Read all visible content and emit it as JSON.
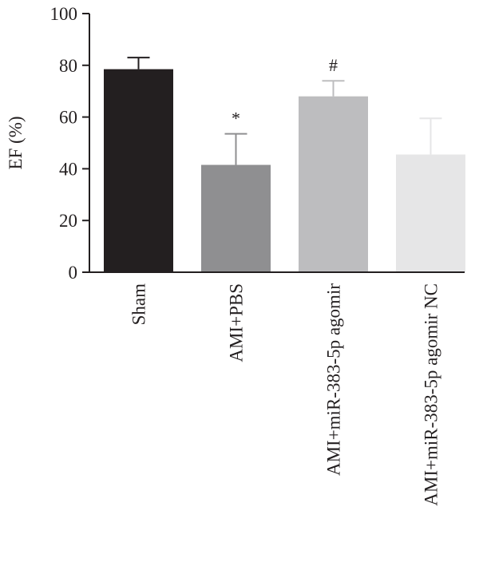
{
  "chart_data": {
    "type": "bar",
    "title": "",
    "xlabel": "",
    "ylabel": "EF (%)",
    "ylim": [
      0,
      100
    ],
    "yticks": [
      0,
      20,
      40,
      60,
      80,
      100
    ],
    "ytick_labels": [
      "0",
      "20",
      "40",
      "60",
      "80",
      "100"
    ],
    "categories": [
      "Sham",
      "AMI+PBS",
      "AMI+miR-383-5p agomir",
      "AMI+miR-383-5p agomir NC"
    ],
    "values": [
      78.5,
      41.5,
      68,
      45.5
    ],
    "error_upper": [
      83,
      53.5,
      74,
      59.5
    ],
    "annotations": [
      "",
      "*",
      "#",
      ""
    ],
    "colors": [
      "#231f20",
      "#8f8f91",
      "#bdbdbf",
      "#e6e6e7"
    ],
    "legend": "none",
    "grid": false
  }
}
